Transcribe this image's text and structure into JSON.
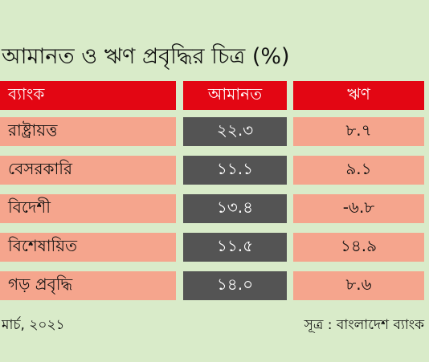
{
  "title": "আমানত ও ঋণ প্রবৃদ্ধির চিত্র (%)",
  "chart_data": {
    "type": "table",
    "columns": [
      "ব্যাংক",
      "আমানত",
      "ঋণ"
    ],
    "rows": [
      {
        "bank": "রাষ্ট্রায়ত্ত",
        "deposit": "২২.৩",
        "loan": "৮.৭"
      },
      {
        "bank": "বেসরকারি",
        "deposit": "১১.১",
        "loan": "৯.১"
      },
      {
        "bank": "বিদেশী",
        "deposit": "১৩.৪",
        "loan": "-৬.৮"
      },
      {
        "bank": "বিশেষায়িত",
        "deposit": "১১.৫",
        "loan": "১৪.৯"
      },
      {
        "bank": "গড় প্রবৃদ্ধি",
        "deposit": "১৪.০",
        "loan": "৮.৬"
      }
    ]
  },
  "footer": {
    "date": "মার্চ, ২০২১",
    "source": "সূত্র : বাংলাদেশ ব্যাংক"
  },
  "colors": {
    "background": "#d9ebc9",
    "header": "#e30613",
    "row_light": "#f5a58d",
    "row_dark": "#545454"
  }
}
